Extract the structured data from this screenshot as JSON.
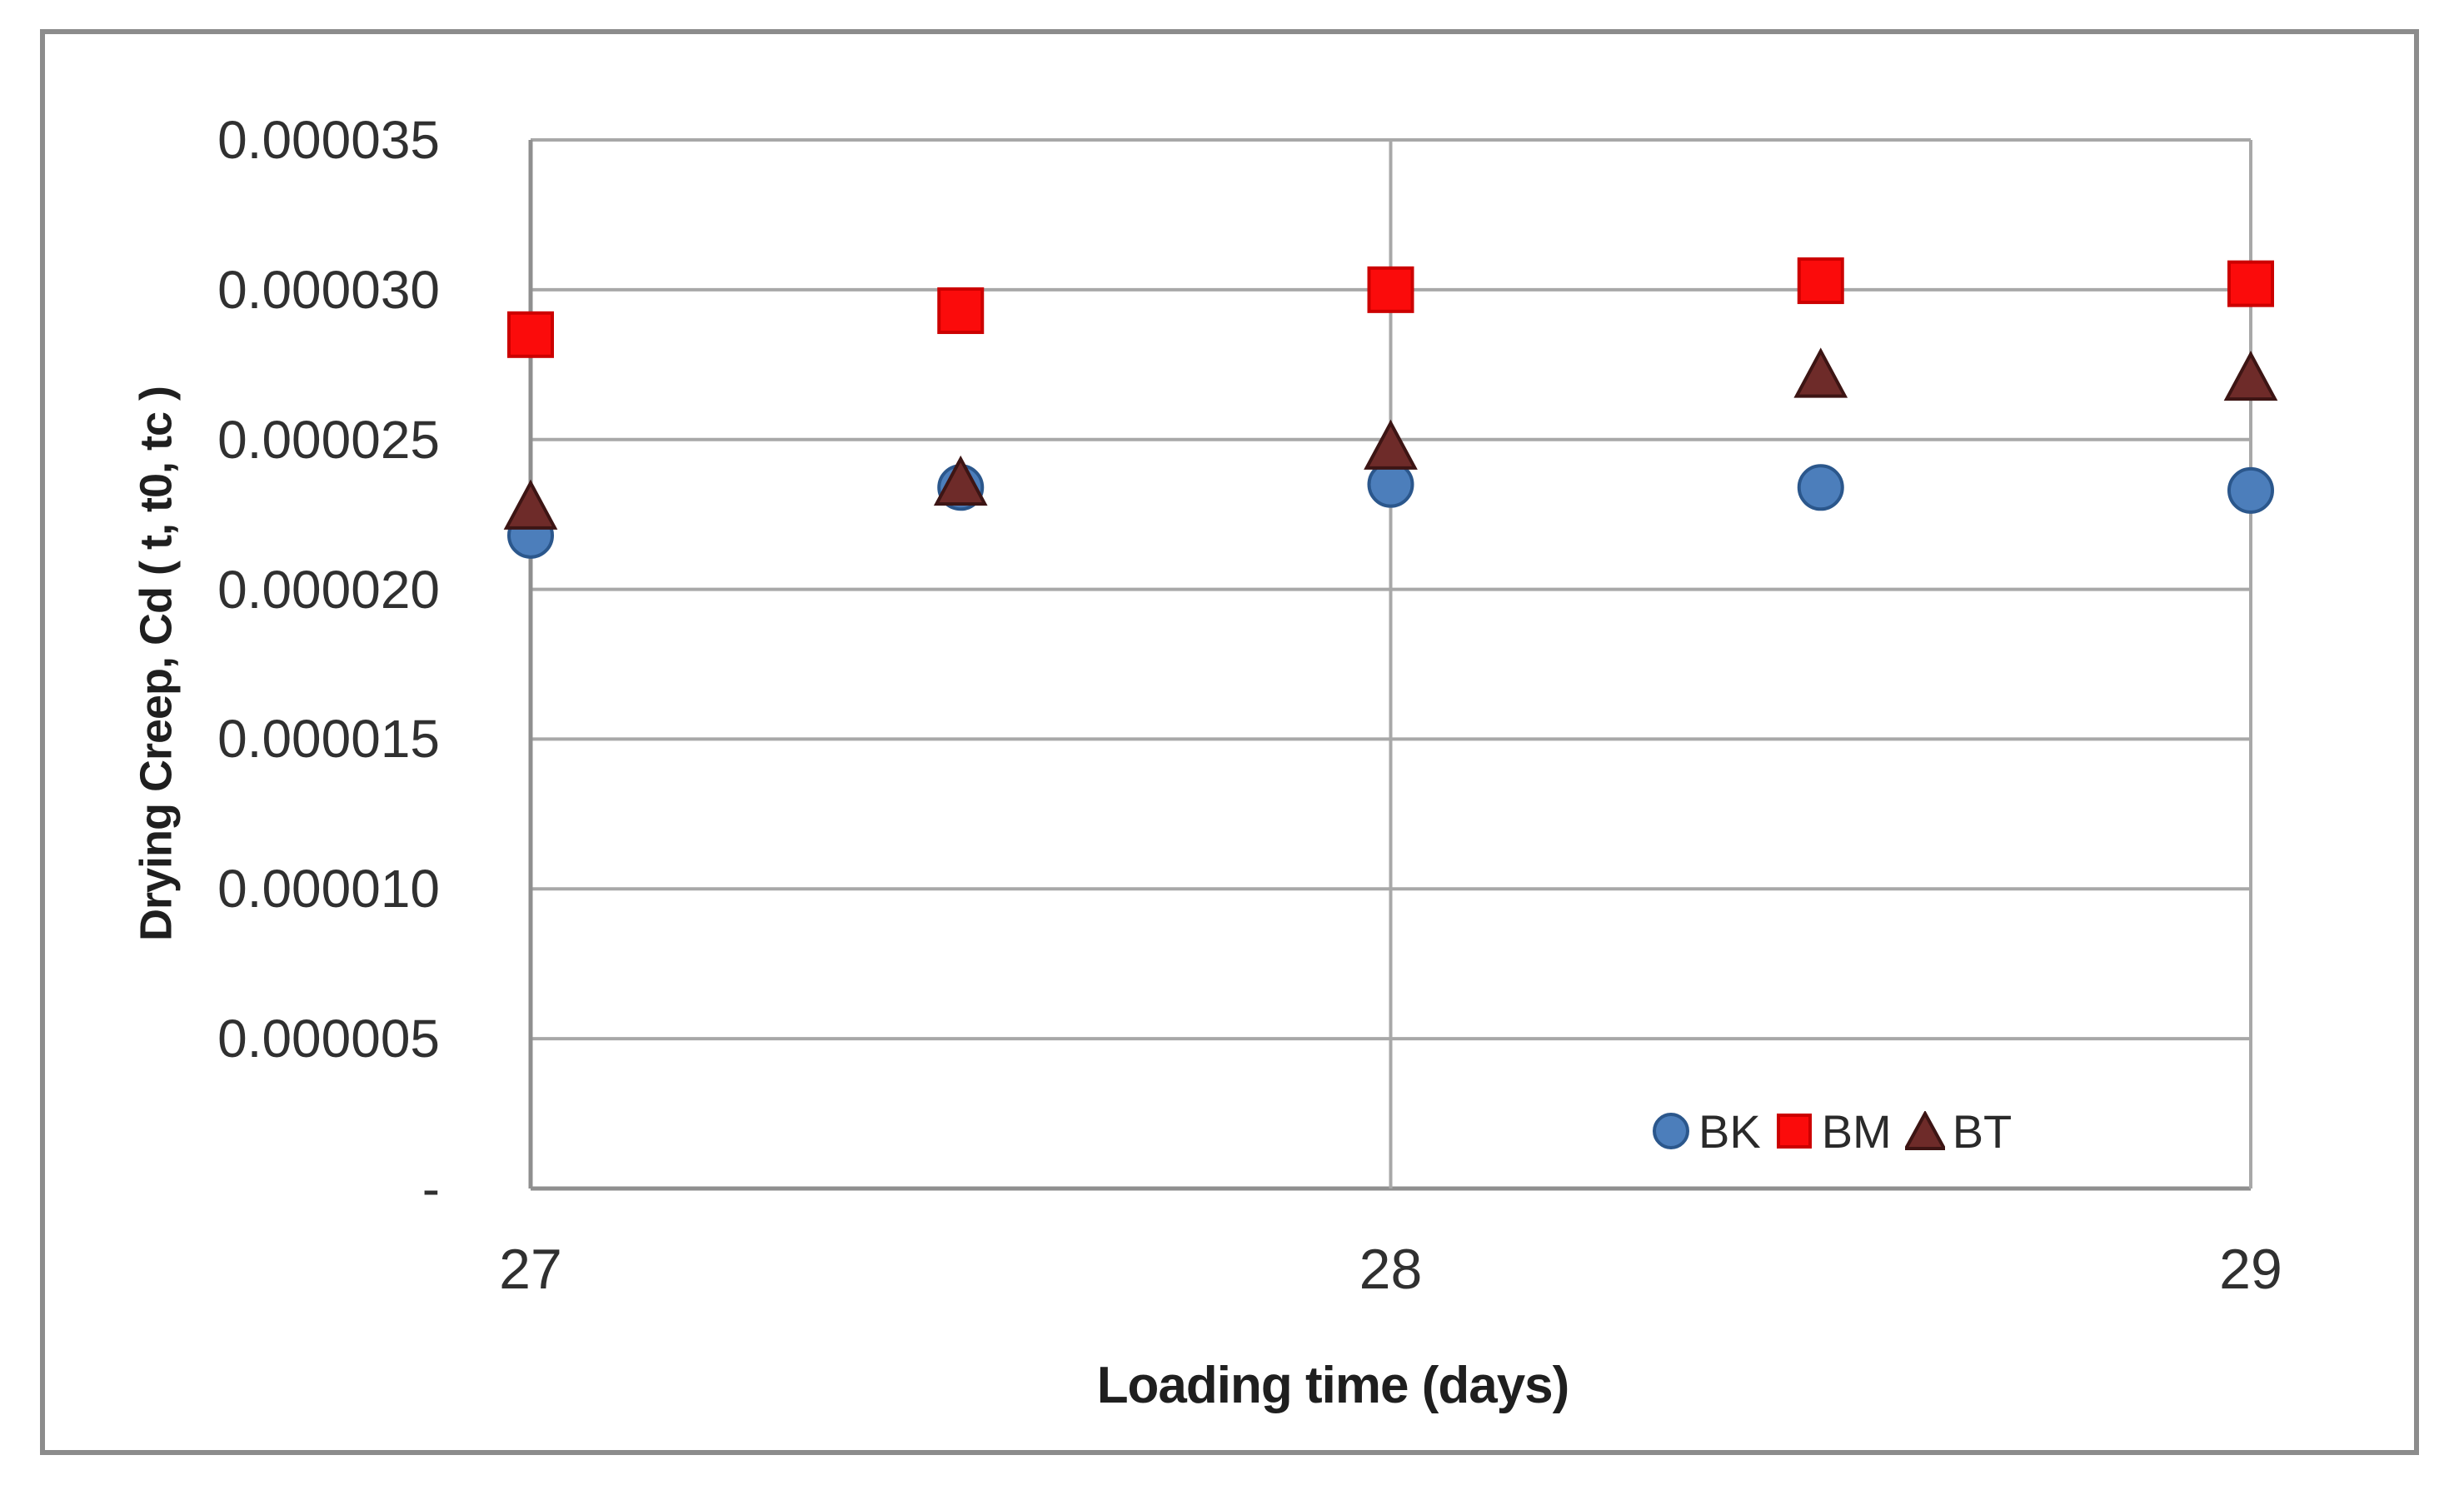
{
  "figure": {
    "background_color": "#ffffff",
    "frame_border_color": "#8c8c8c"
  },
  "chart_data": {
    "type": "scatter",
    "title": "",
    "xlabel": "Loading time (days)",
    "ylabel": "Drying Creep, Cd ( t, t0, tc )",
    "xlim": [
      27,
      29
    ],
    "ylim": [
      0,
      3.5e-05
    ],
    "grid": {
      "horizontal": true,
      "vertical": true
    },
    "x_ticks": [
      {
        "value": 27,
        "label": "27"
      },
      {
        "value": 28,
        "label": "28"
      },
      {
        "value": 29,
        "label": "29"
      }
    ],
    "y_ticks": [
      {
        "value": 0,
        "label": "-"
      },
      {
        "value": 5e-06,
        "label": "0.000005"
      },
      {
        "value": 1e-05,
        "label": "0.000010"
      },
      {
        "value": 1.5e-05,
        "label": "0.000015"
      },
      {
        "value": 2e-05,
        "label": "0.000020"
      },
      {
        "value": 2.5e-05,
        "label": "0.000025"
      },
      {
        "value": 3e-05,
        "label": "0.000030"
      },
      {
        "value": 3.5e-05,
        "label": "0.000035"
      }
    ],
    "legend": {
      "position": "inside-bottom-right",
      "entries": [
        "BK",
        "BM",
        "BT"
      ]
    },
    "series": [
      {
        "name": "BK",
        "marker": "circle",
        "fill": "#4C7EBB",
        "stroke": "#2B578C",
        "x": [
          27,
          27.5,
          28,
          28.5,
          29
        ],
        "y": [
          2.18e-05,
          2.34e-05,
          2.35e-05,
          2.34e-05,
          2.33e-05
        ]
      },
      {
        "name": "BM",
        "marker": "square",
        "fill": "#FB0B0B",
        "stroke": "#CC0000",
        "x": [
          27,
          27.5,
          28,
          28.5,
          29
        ],
        "y": [
          2.85e-05,
          2.93e-05,
          3e-05,
          3.03e-05,
          3.02e-05
        ]
      },
      {
        "name": "BT",
        "marker": "triangle",
        "fill": "#6E2B29",
        "stroke": "#3D1514",
        "x": [
          27,
          27.5,
          28,
          28.5,
          29
        ],
        "y": [
          2.28e-05,
          2.36e-05,
          2.48e-05,
          2.72e-05,
          2.71e-05
        ]
      }
    ],
    "style": {
      "gridline_color": "#a8a8a8",
      "axis_line_color": "#8f8f8f",
      "tick_label_color": "#303030",
      "axis_title_color": "#1f1f1f"
    }
  }
}
